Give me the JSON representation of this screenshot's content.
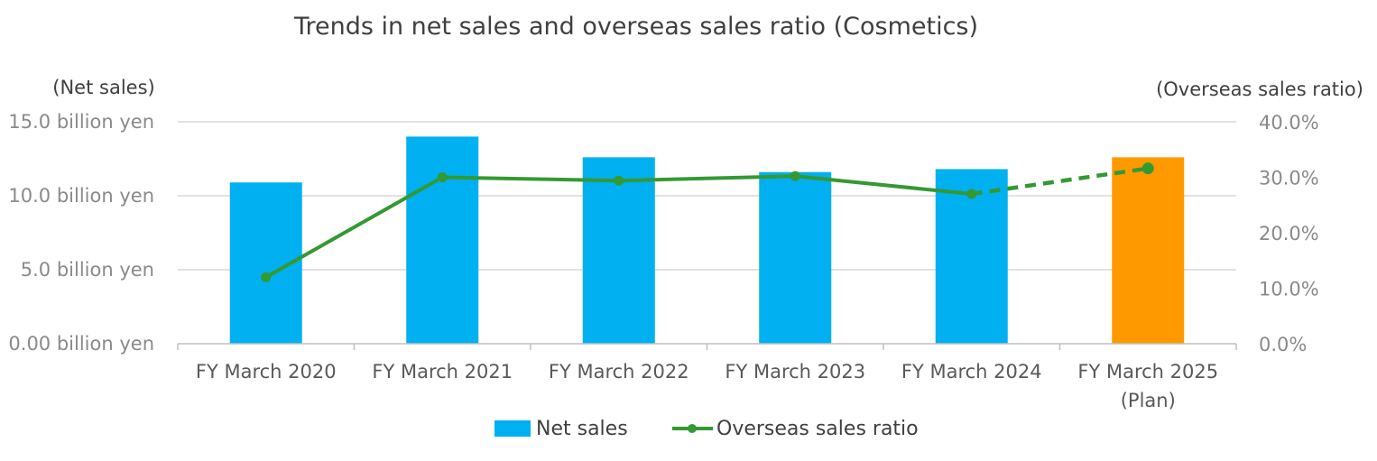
{
  "chart_data": {
    "type": "bar",
    "title": "Trends in net sales and overseas sales ratio (Cosmetics)",
    "y_left_label": "(Net sales)",
    "y_right_label": "(Overseas sales ratio)",
    "y_left_ticks": [
      "0.00 billion yen",
      "5.0 billion yen",
      "10.0 billion yen",
      "15.0 billion yen"
    ],
    "y_left_tick_values": [
      0,
      5,
      10,
      15
    ],
    "y_right_ticks": [
      "0.0%",
      "10.0%",
      "20.0%",
      "30.0%",
      "40.0%"
    ],
    "y_right_tick_values": [
      0,
      10,
      20,
      30,
      40
    ],
    "ylim_left": [
      0,
      15
    ],
    "ylim_right": [
      0,
      40
    ],
    "categories": [
      [
        "FY March 2020"
      ],
      [
        "FY March 2021"
      ],
      [
        "FY March 2022"
      ],
      [
        "FY March 2023"
      ],
      [
        "FY March 2024"
      ],
      [
        "FY March 2025",
        "(Plan)"
      ]
    ],
    "series": [
      {
        "name": "Net sales",
        "type": "bar",
        "axis": "left",
        "values": [
          10.9,
          14.0,
          12.6,
          11.6,
          11.8,
          12.6
        ],
        "colors": [
          "#00b0f0",
          "#00b0f0",
          "#00b0f0",
          "#00b0f0",
          "#00b0f0",
          "#ff9900"
        ]
      },
      {
        "name": "Overseas sales ratio",
        "type": "line",
        "axis": "right",
        "values": [
          12.0,
          30.0,
          29.4,
          30.2,
          27.0,
          31.6
        ],
        "dashed_from_index": 4,
        "color": "#339933"
      }
    ],
    "grid": true,
    "legend_position": "bottom"
  }
}
